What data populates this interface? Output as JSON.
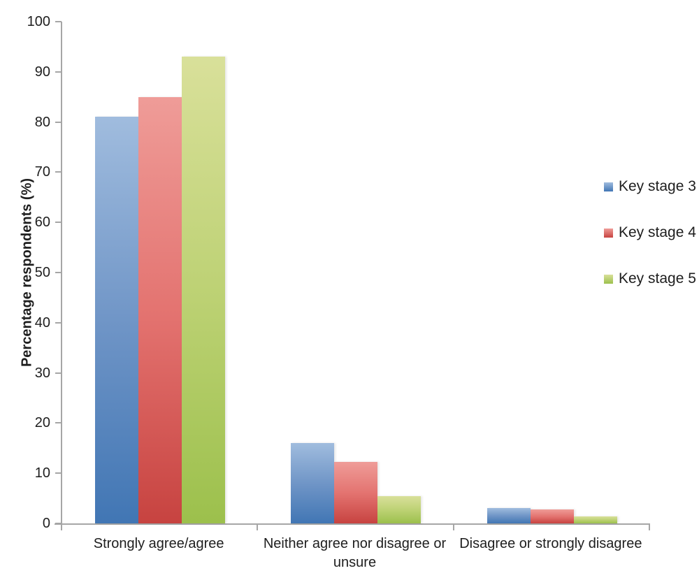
{
  "chart_data": {
    "type": "bar",
    "title": "",
    "categories": [
      "Strongly agree/agree",
      "Neither agree nor disagree or unsure",
      "Disagree or strongly disagree"
    ],
    "series": [
      {
        "name": "Key stage 3",
        "values": [
          81,
          16,
          3
        ],
        "color_top": "#A0BCDE",
        "color_mid": "#6E94C6",
        "color_bottom": "#4176B4"
      },
      {
        "name": "Key stage 4",
        "values": [
          85,
          12.3,
          2.8
        ],
        "color_top": "#EF9C98",
        "color_mid": "#E3726F",
        "color_bottom": "#C74340"
      },
      {
        "name": "Key stage 5",
        "values": [
          93,
          5.4,
          1.4
        ],
        "color_top": "#D9E09A",
        "color_mid": "#BCD173",
        "color_bottom": "#9CC04C"
      }
    ],
    "xlabel": "",
    "ylabel": "Percentage respondents (%)",
    "ylim": [
      0,
      100
    ],
    "yticks": [
      0,
      10,
      20,
      30,
      40,
      50,
      60,
      70,
      80,
      90,
      100
    ],
    "grid": false,
    "legend_position": "right"
  },
  "axis_style": {
    "line_color": "#A6A6A6",
    "text_color": "#1E1E1E"
  }
}
